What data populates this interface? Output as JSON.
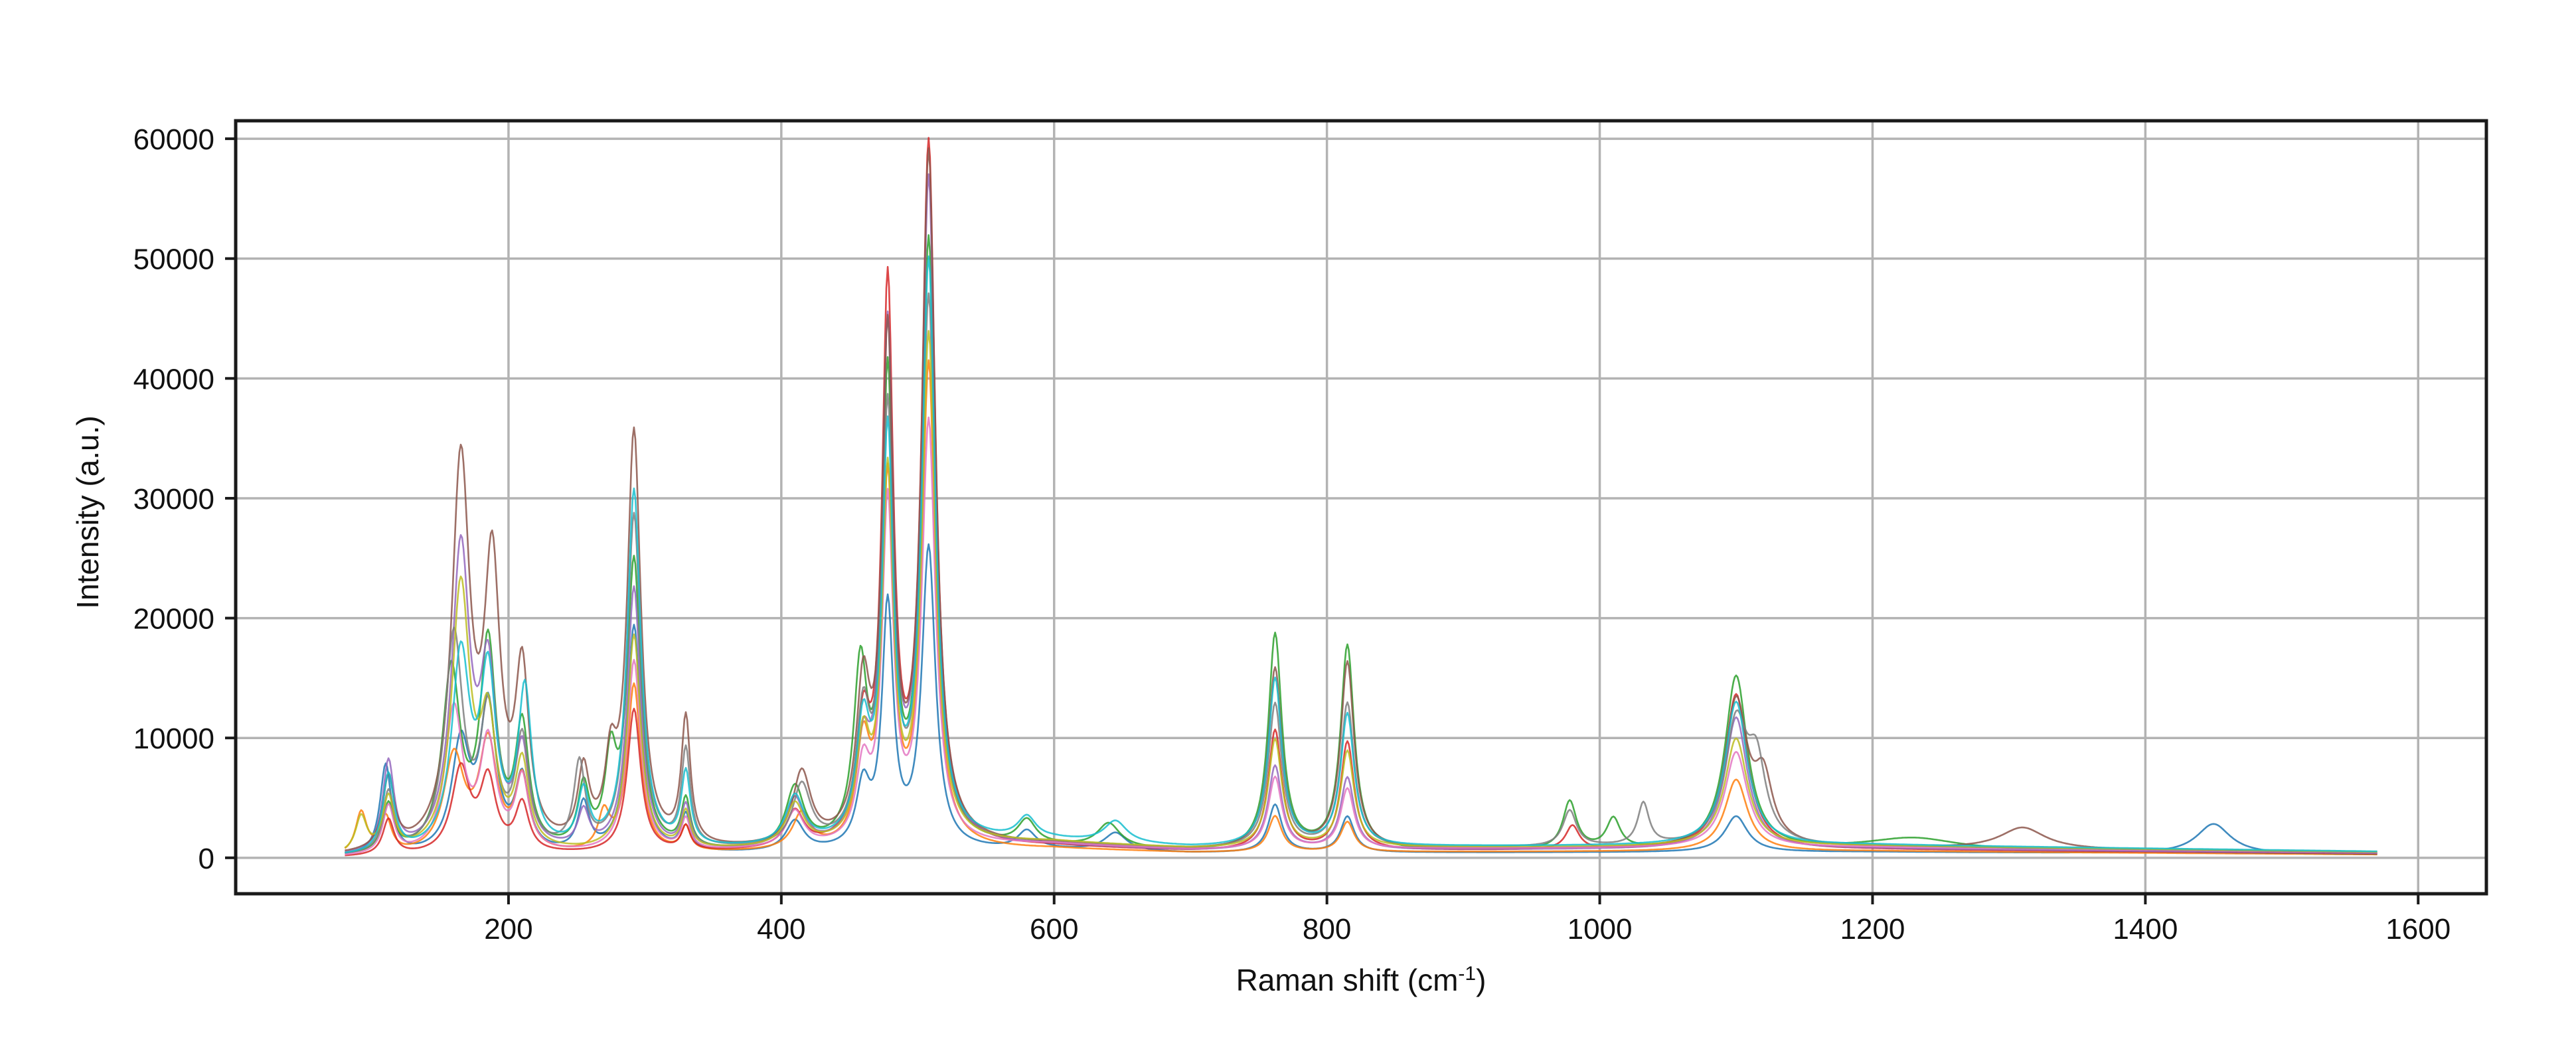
{
  "chart_data": {
    "type": "line",
    "title": "",
    "xlabel": "Raman shift (cm",
    "xlabel_sup": "-1",
    "xlabel_suffix": ")",
    "ylabel": "Intensity (a.u.)",
    "xlim": [
      0,
      1650
    ],
    "ylim": [
      -3000,
      61500
    ],
    "xticks": [
      200,
      400,
      600,
      800,
      1000,
      1200,
      1400,
      1600
    ],
    "yticks": [
      0,
      10000,
      20000,
      30000,
      40000,
      50000,
      60000
    ],
    "grid": true,
    "legend": "none",
    "x_range": [
      80,
      1570
    ],
    "background": [
      {
        "x": 80,
        "y": 0
      },
      {
        "x": 300,
        "y": 300
      },
      {
        "x": 600,
        "y": 1000
      },
      {
        "x": 700,
        "y": 600
      },
      {
        "x": 900,
        "y": 700
      },
      {
        "x": 1200,
        "y": 800
      },
      {
        "x": 1570,
        "y": 400
      }
    ],
    "series_colors": [
      "#1f77b4",
      "#ff7f0e",
      "#2ca02c",
      "#d62728",
      "#9467bd",
      "#8c564b",
      "#e377c2",
      "#7f7f7f",
      "#bcbd22",
      "#17becf"
    ],
    "series": [
      {
        "color": "#1f77b4",
        "peaks": [
          [
            110,
            7500,
            5
          ],
          [
            165,
            9000,
            8
          ],
          [
            185,
            12000,
            7
          ],
          [
            210,
            6000,
            6
          ],
          [
            255,
            4000,
            5
          ],
          [
            292,
            19000,
            6
          ],
          [
            330,
            3000,
            4
          ],
          [
            410,
            2500,
            8
          ],
          [
            460,
            5000,
            6
          ],
          [
            478,
            20000,
            5
          ],
          [
            508,
            25000,
            6
          ],
          [
            580,
            1500,
            8
          ],
          [
            645,
            1500,
            10
          ],
          [
            762,
            4000,
            6
          ],
          [
            815,
            3000,
            6
          ],
          [
            1100,
            3000,
            10
          ],
          [
            1450,
            2500,
            15
          ]
        ]
      },
      {
        "color": "#ff7f0e",
        "peaks": [
          [
            92,
            3500,
            5
          ],
          [
            110,
            3000,
            5
          ],
          [
            160,
            8000,
            9
          ],
          [
            185,
            9000,
            8
          ],
          [
            210,
            6000,
            6
          ],
          [
            270,
            3000,
            5
          ],
          [
            292,
            14000,
            6
          ],
          [
            330,
            2000,
            4
          ],
          [
            415,
            3000,
            8
          ],
          [
            460,
            8000,
            6
          ],
          [
            478,
            30000,
            5
          ],
          [
            508,
            40000,
            6
          ],
          [
            762,
            3000,
            6
          ],
          [
            815,
            2500,
            6
          ],
          [
            1100,
            6000,
            10
          ]
        ]
      },
      {
        "color": "#2ca02c",
        "peaks": [
          [
            112,
            4000,
            5
          ],
          [
            158,
            15000,
            8
          ],
          [
            185,
            17000,
            7
          ],
          [
            210,
            10000,
            6
          ],
          [
            255,
            5000,
            5
          ],
          [
            275,
            7000,
            5
          ],
          [
            292,
            24000,
            6
          ],
          [
            330,
            4000,
            4
          ],
          [
            410,
            5000,
            8
          ],
          [
            458,
            14000,
            6
          ],
          [
            478,
            38000,
            5
          ],
          [
            508,
            50000,
            6
          ],
          [
            580,
            2000,
            8
          ],
          [
            640,
            2000,
            10
          ],
          [
            762,
            18000,
            6
          ],
          [
            815,
            17000,
            6
          ],
          [
            978,
            4000,
            6
          ],
          [
            1010,
            2500,
            6
          ],
          [
            1100,
            14500,
            10
          ],
          [
            1230,
            1000,
            40
          ]
        ]
      },
      {
        "color": "#d62728",
        "peaks": [
          [
            112,
            3000,
            5
          ],
          [
            165,
            7000,
            8
          ],
          [
            185,
            6000,
            7
          ],
          [
            210,
            4000,
            6
          ],
          [
            292,
            12000,
            6
          ],
          [
            330,
            2000,
            4
          ],
          [
            410,
            3000,
            8
          ],
          [
            460,
            9000,
            6
          ],
          [
            478,
            45500,
            5
          ],
          [
            508,
            58000,
            6
          ],
          [
            762,
            10000,
            6
          ],
          [
            815,
            9000,
            6
          ],
          [
            980,
            2000,
            6
          ],
          [
            1100,
            13000,
            10
          ]
        ]
      },
      {
        "color": "#9467bd",
        "peaks": [
          [
            112,
            7500,
            5
          ],
          [
            165,
            25000,
            8
          ],
          [
            185,
            14000,
            7
          ],
          [
            210,
            8000,
            6
          ],
          [
            255,
            3000,
            5
          ],
          [
            292,
            22000,
            6
          ],
          [
            330,
            3500,
            4
          ],
          [
            410,
            4000,
            8
          ],
          [
            460,
            7000,
            6
          ],
          [
            478,
            42000,
            5
          ],
          [
            508,
            55000,
            6
          ],
          [
            762,
            7000,
            6
          ],
          [
            815,
            6000,
            6
          ],
          [
            1100,
            11000,
            10
          ]
        ]
      },
      {
        "color": "#8c564b",
        "peaks": [
          [
            112,
            6000,
            5
          ],
          [
            165,
            32000,
            8
          ],
          [
            188,
            22500,
            7
          ],
          [
            210,
            14000,
            6
          ],
          [
            255,
            6000,
            5
          ],
          [
            275,
            6000,
            5
          ],
          [
            292,
            34500,
            6
          ],
          [
            330,
            10500,
            4
          ],
          [
            415,
            6000,
            8
          ],
          [
            460,
            12000,
            6
          ],
          [
            478,
            41000,
            5
          ],
          [
            508,
            57000,
            6
          ],
          [
            762,
            15000,
            6
          ],
          [
            815,
            15500,
            6
          ],
          [
            1100,
            12000,
            10
          ],
          [
            1120,
            5000,
            8
          ],
          [
            1310,
            1800,
            20
          ]
        ]
      },
      {
        "color": "#e377c2",
        "peaks": [
          [
            112,
            4000,
            5
          ],
          [
            160,
            12000,
            8
          ],
          [
            185,
            9000,
            7
          ],
          [
            210,
            6000,
            6
          ],
          [
            292,
            16000,
            6
          ],
          [
            330,
            2500,
            4
          ],
          [
            410,
            3000,
            8
          ],
          [
            460,
            6000,
            6
          ],
          [
            478,
            28000,
            5
          ],
          [
            508,
            35000,
            6
          ],
          [
            762,
            6000,
            6
          ],
          [
            815,
            5000,
            6
          ],
          [
            1100,
            8000,
            10
          ]
        ]
      },
      {
        "color": "#7f7f7f",
        "peaks": [
          [
            112,
            5000,
            5
          ],
          [
            160,
            18000,
            8
          ],
          [
            185,
            11000,
            7
          ],
          [
            210,
            9000,
            6
          ],
          [
            252,
            7000,
            5
          ],
          [
            292,
            28000,
            6
          ],
          [
            330,
            8000,
            4
          ],
          [
            415,
            5000,
            8
          ],
          [
            460,
            10000,
            6
          ],
          [
            478,
            35000,
            5
          ],
          [
            508,
            45000,
            6
          ],
          [
            762,
            12000,
            6
          ],
          [
            815,
            12000,
            6
          ],
          [
            978,
            3000,
            6
          ],
          [
            1032,
            3500,
            5
          ],
          [
            1100,
            10000,
            10
          ],
          [
            1115,
            6000,
            8
          ]
        ]
      },
      {
        "color": "#bcbd22",
        "peaks": [
          [
            92,
            3000,
            5
          ],
          [
            112,
            4500,
            5
          ],
          [
            165,
            22000,
            8
          ],
          [
            185,
            10000,
            7
          ],
          [
            210,
            7000,
            6
          ],
          [
            292,
            18000,
            6
          ],
          [
            330,
            3000,
            4
          ],
          [
            410,
            3500,
            8
          ],
          [
            460,
            8000,
            6
          ],
          [
            478,
            30000,
            5
          ],
          [
            508,
            42000,
            6
          ],
          [
            762,
            9000,
            6
          ],
          [
            815,
            8000,
            6
          ],
          [
            1100,
            9000,
            10
          ]
        ]
      },
      {
        "color": "#17becf",
        "peaks": [
          [
            112,
            6500,
            5
          ],
          [
            165,
            16000,
            8
          ],
          [
            185,
            14000,
            7
          ],
          [
            212,
            13000,
            6
          ],
          [
            255,
            4500,
            5
          ],
          [
            292,
            30000,
            6
          ],
          [
            330,
            6000,
            4
          ],
          [
            410,
            4000,
            8
          ],
          [
            460,
            9000,
            6
          ],
          [
            478,
            33000,
            5
          ],
          [
            508,
            48000,
            6
          ],
          [
            580,
            1800,
            8
          ],
          [
            645,
            1800,
            10
          ],
          [
            762,
            14000,
            6
          ],
          [
            815,
            11000,
            6
          ],
          [
            1100,
            12000,
            10
          ]
        ]
      }
    ]
  }
}
